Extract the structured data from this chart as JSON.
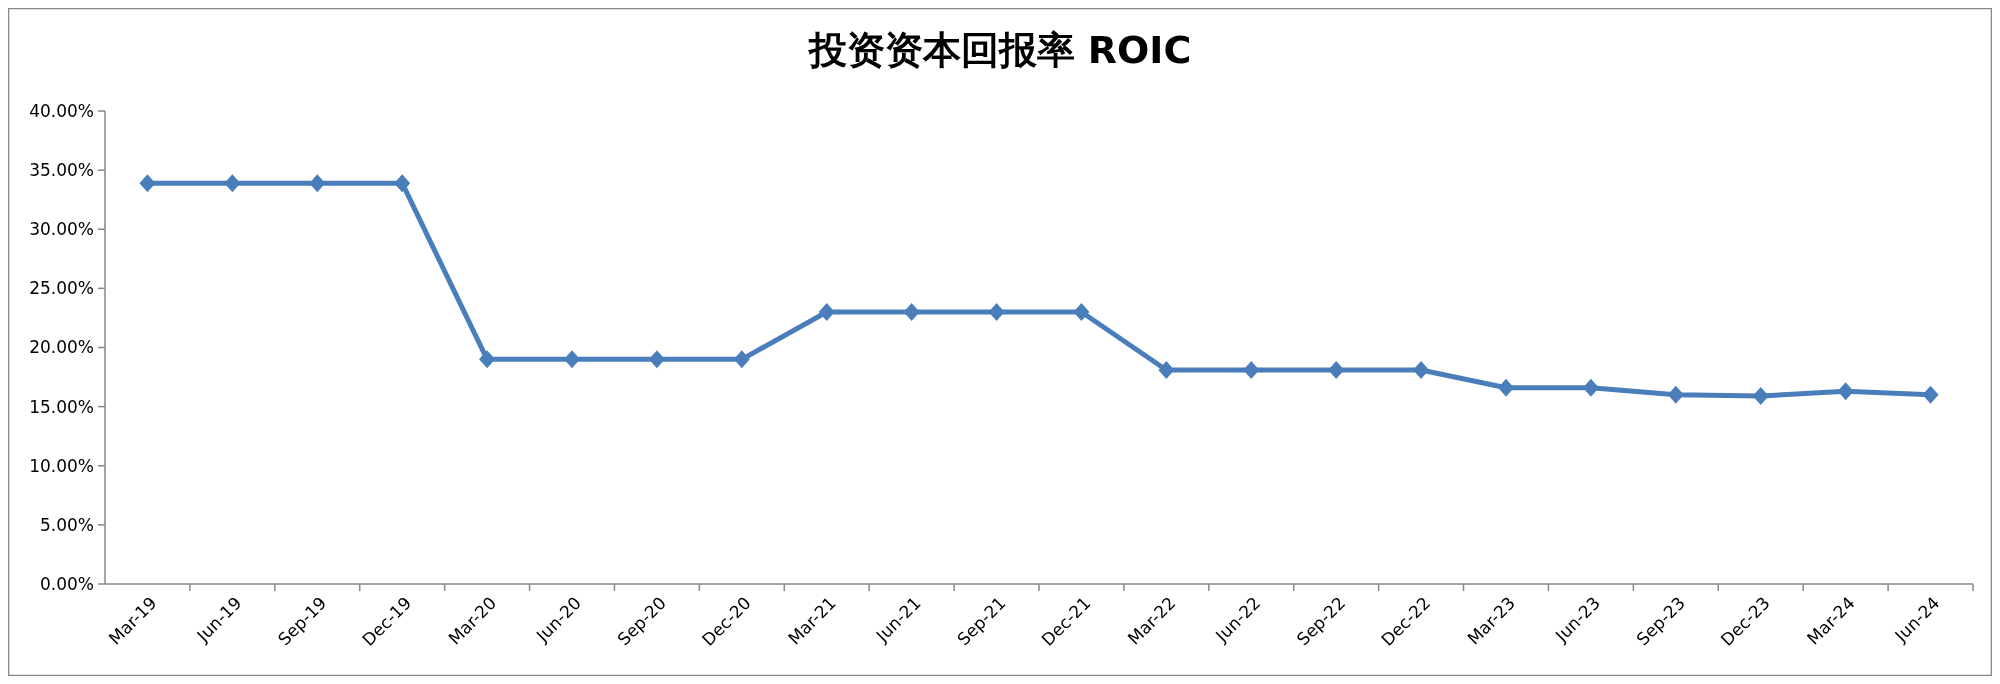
{
  "chart_data": {
    "type": "line",
    "title": "投资资本回报率 ROIC",
    "categories": [
      "Mar-19",
      "Jun-19",
      "Sep-19",
      "Dec-19",
      "Mar-20",
      "Jun-20",
      "Sep-20",
      "Dec-20",
      "Mar-21",
      "Jun-21",
      "Sep-21",
      "Dec-21",
      "Mar-22",
      "Jun-22",
      "Sep-22",
      "Dec-22",
      "Mar-23",
      "Jun-23",
      "Sep-23",
      "Dec-23",
      "Mar-24",
      "Jun-24"
    ],
    "series": [
      {
        "color": "#4a7ebb",
        "values": [
          33.9,
          33.9,
          33.9,
          33.9,
          19.0,
          19.0,
          19.0,
          19.0,
          23.0,
          23.0,
          23.0,
          23.0,
          18.1,
          18.1,
          18.1,
          18.1,
          16.6,
          16.6,
          16.0,
          15.9,
          16.3,
          16.0
        ]
      }
    ],
    "ylim": [
      0,
      40
    ],
    "yticks": [
      {
        "value": 0,
        "label": "0.00%"
      },
      {
        "value": 5,
        "label": "5.00%"
      },
      {
        "value": 10,
        "label": "10.00%"
      },
      {
        "value": 15,
        "label": "15.00%"
      },
      {
        "value": 20,
        "label": "20.00%"
      },
      {
        "value": 25,
        "label": "25.00%"
      },
      {
        "value": 30,
        "label": "30.00%"
      },
      {
        "value": 35,
        "label": "35.00%"
      },
      {
        "value": 40,
        "label": "40.00%"
      }
    ],
    "grid": false,
    "marker": "diamond",
    "line_style": "solid"
  }
}
